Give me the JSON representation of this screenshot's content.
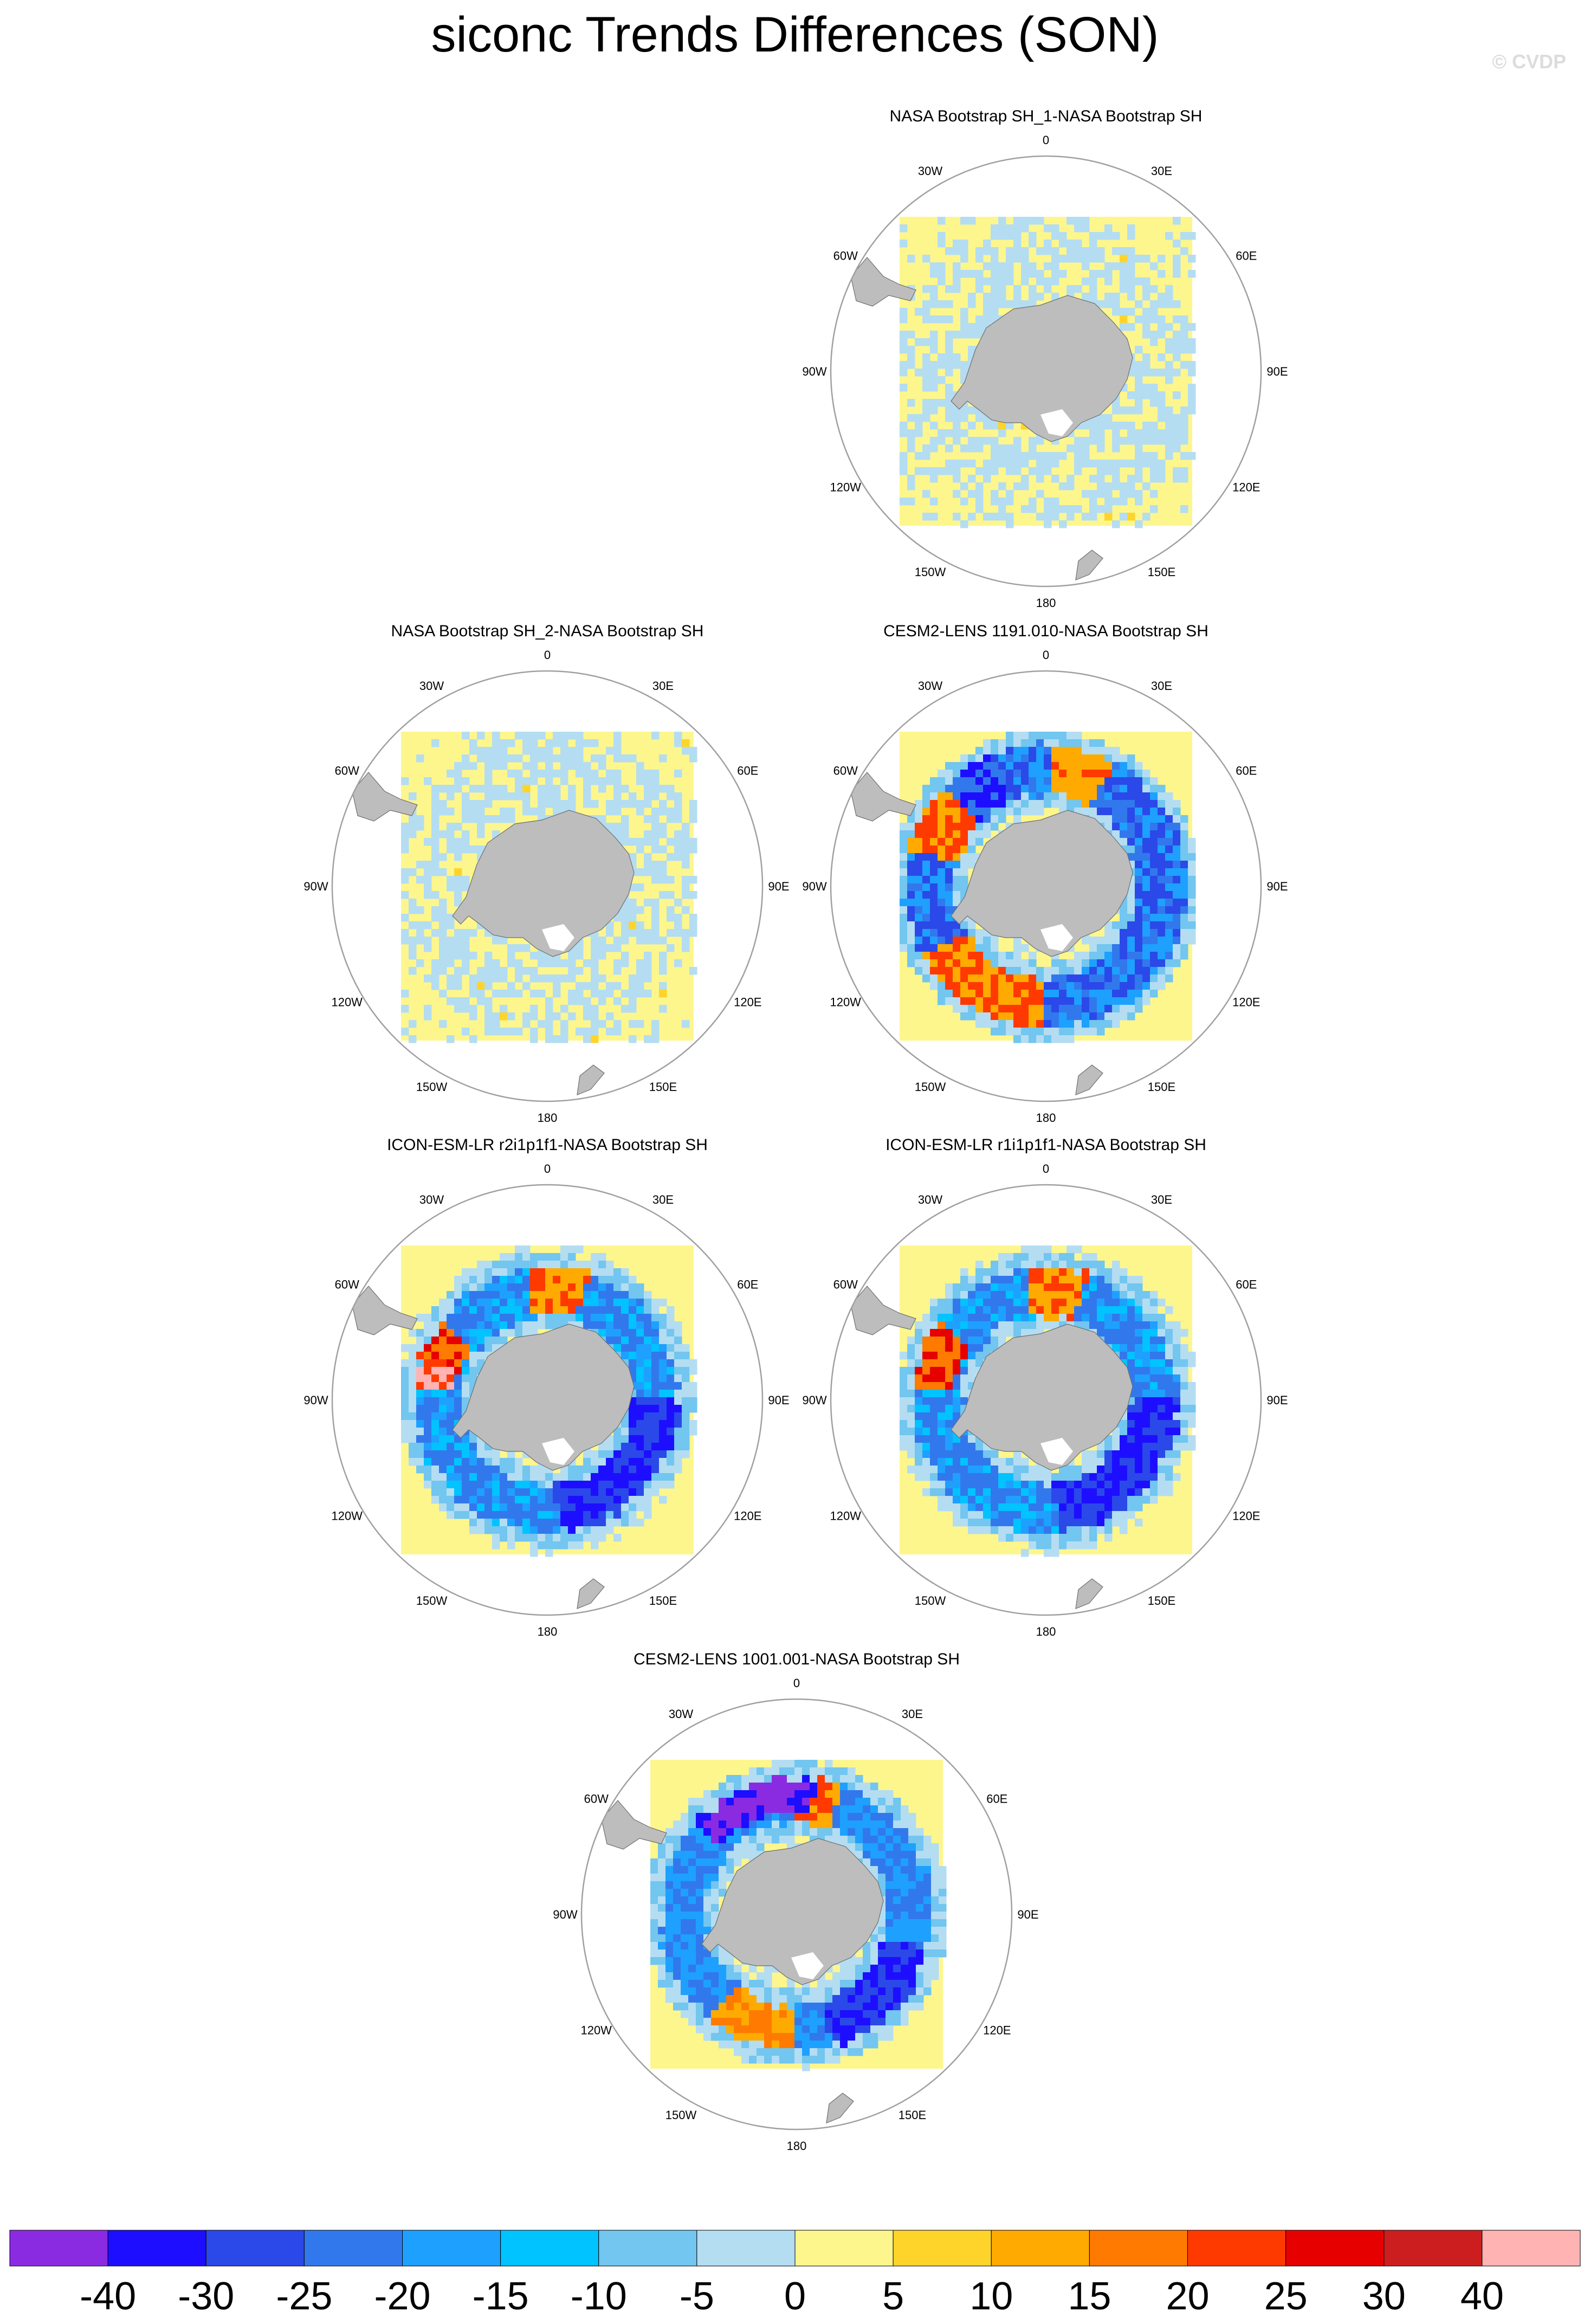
{
  "title": "siconc Trends Differences (SON)",
  "watermark": "© CVDP",
  "colors": {
    "land": "#bdbdbd",
    "land_edge": "#6e6e6e",
    "map_bg": "#fdf68d",
    "circle": "#a0a0a0"
  },
  "longitude_labels": [
    "0",
    "30E",
    "60E",
    "90E",
    "120E",
    "150E",
    "180",
    "150W",
    "120W",
    "90W",
    "60W",
    "30W"
  ],
  "chart_data": [
    {
      "type": "heatmap",
      "title": "NASA Bootstrap SH_1-NASA Bootstrap SH",
      "projection": "south polar stereographic",
      "pattern": "weak",
      "variable": "siconc trend difference"
    },
    {
      "type": "heatmap",
      "title": "NASA Bootstrap SH_2-NASA Bootstrap SH",
      "projection": "south polar stereographic",
      "pattern": "weak",
      "variable": "siconc trend difference"
    },
    {
      "type": "heatmap",
      "title": "CESM2-LENS 1191.010-NASA Bootstrap SH",
      "projection": "south polar stereographic",
      "pattern": "cesm_a",
      "variable": "siconc trend difference"
    },
    {
      "type": "heatmap",
      "title": "ICON-ESM-LR r2i1p1f1-NASA Bootstrap SH",
      "projection": "south polar stereographic",
      "pattern": "icon2",
      "variable": "siconc trend difference"
    },
    {
      "type": "heatmap",
      "title": "ICON-ESM-LR r1i1p1f1-NASA Bootstrap SH",
      "projection": "south polar stereographic",
      "pattern": "icon1",
      "variable": "siconc trend difference"
    },
    {
      "type": "heatmap",
      "title": "CESM2-LENS 1001.001-NASA Bootstrap SH",
      "projection": "south polar stereographic",
      "pattern": "cesm_b",
      "variable": "siconc trend difference"
    }
  ],
  "colorbar": {
    "levels": [
      "-40",
      "-30",
      "-25",
      "-20",
      "-15",
      "-10",
      "-5",
      "0",
      "5",
      "10",
      "15",
      "20",
      "25",
      "30",
      "40"
    ],
    "colors": [
      "#8a2be2",
      "#1e0eff",
      "#2a49e8",
      "#3278ed",
      "#1ea0ff",
      "#00c3ff",
      "#72c6ef",
      "#b4ddf2",
      "#fdf68d",
      "#ffd42a",
      "#ffaa00",
      "#ff7a00",
      "#ff3a00",
      "#e60000",
      "#cc1e1e",
      "#ffb3b3"
    ]
  }
}
